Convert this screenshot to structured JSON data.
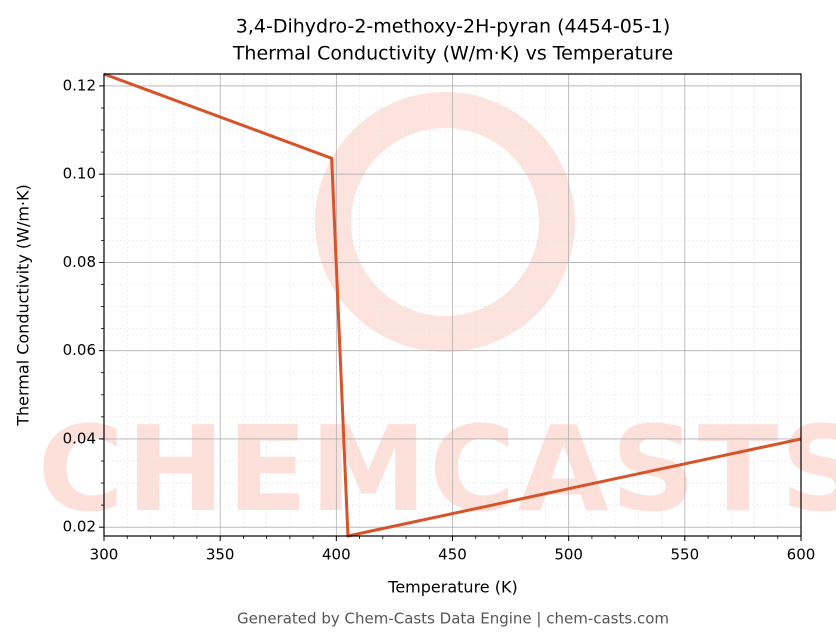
{
  "chart_data": {
    "type": "line",
    "title": "3,4-Dihydro-2-methoxy-2H-pyran (4454-05-1)",
    "subtitle": "Thermal Conductivity (W/m·K) vs Temperature",
    "xlabel": "Temperature (K)",
    "ylabel": "Thermal Conductivity (W/m·K)",
    "watermark": "CHEMCASTS",
    "footer": "Generated by Chem-Casts Data Engine | chem-casts.com",
    "x": [
      300,
      398,
      405,
      600
    ],
    "series": [
      {
        "name": "Thermal Conductivity",
        "color": "#d6542a",
        "values": [
          0.1227,
          0.1036,
          0.018,
          0.04
        ]
      }
    ],
    "xlim": [
      300,
      600
    ],
    "xticks": [
      300,
      350,
      400,
      450,
      500,
      550,
      600
    ],
    "ylim": [
      0.018,
      0.1227
    ],
    "yticks": [
      0.02,
      0.04,
      0.06,
      0.08,
      {
        "value": 0.1,
        "label": "0.10"
      },
      0.12
    ],
    "grid": true
  }
}
